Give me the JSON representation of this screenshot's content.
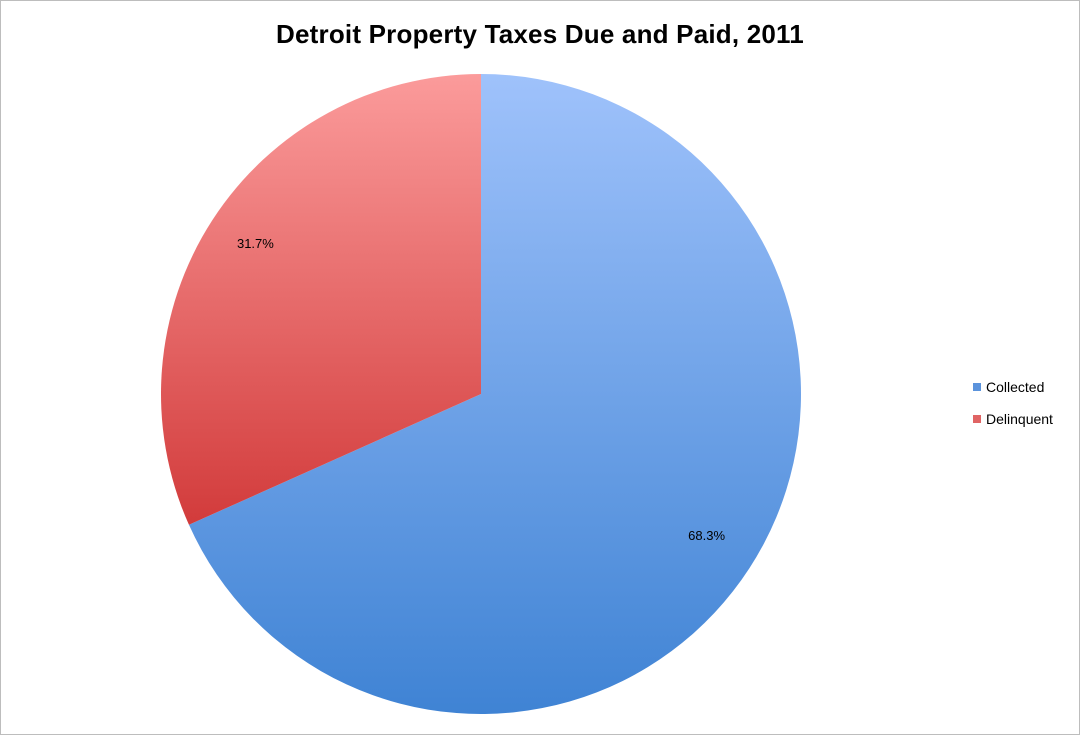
{
  "chart_data": {
    "type": "pie",
    "title": "Detroit Property Taxes Due and Paid, 2011",
    "categories": [
      "Collected",
      "Delinquent"
    ],
    "values": [
      68.3,
      31.7
    ],
    "data_labels": [
      "68.3%",
      "31.7%"
    ],
    "colors": [
      "#5b93dc",
      "#e06464"
    ],
    "legend_position": "right",
    "start_angle": "12 o'clock, clockwise"
  }
}
